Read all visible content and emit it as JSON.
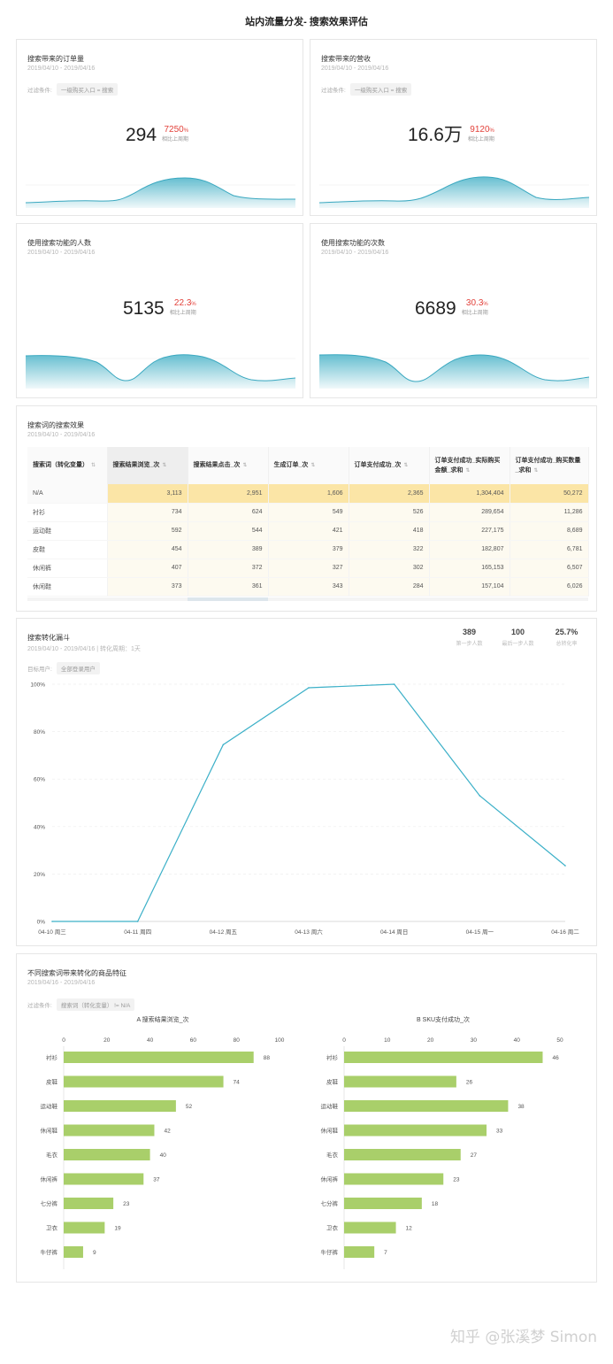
{
  "page_title": "站内流量分发- 搜索效果评估",
  "kpis": [
    {
      "title": "搜索带来的订单量",
      "date": "2019/04/10 - 2019/04/16",
      "filter_label": "过滤条件:",
      "filter_tag": "一级购买入口 = 搜索",
      "value": "294",
      "pct": "7250",
      "pct_unit": "%",
      "compare": "相比上周期"
    },
    {
      "title": "搜索带来的营收",
      "date": "2019/04/10 - 2019/04/16",
      "filter_label": "过滤条件:",
      "filter_tag": "一级购买入口 = 搜索",
      "value": "16.6万",
      "pct": "9120",
      "pct_unit": "%",
      "compare": "相比上周期"
    },
    {
      "title": "使用搜索功能的人数",
      "date": "2019/04/10 - 2019/04/16",
      "value": "5135",
      "pct": "22.3",
      "pct_unit": "%",
      "compare": "相比上周期"
    },
    {
      "title": "使用搜索功能的次数",
      "date": "2019/04/10 - 2019/04/16",
      "value": "6689",
      "pct": "30.3",
      "pct_unit": "%",
      "compare": "相比上周期"
    }
  ],
  "table": {
    "title": "搜索词的搜索效果",
    "date": "2019/04/10 - 2019/04/16",
    "columns": [
      "搜索词（转化变量）",
      "搜索结果浏览_次",
      "搜索结果点击_次",
      "生成订单_次",
      "订单支付成功_次",
      "订单支付成功_实际购买金额_求和",
      "订单支付成功_购买数量_求和"
    ],
    "rows": [
      [
        "N/A",
        "3,113",
        "2,951",
        "1,606",
        "2,365",
        "1,304,404",
        "50,272"
      ],
      [
        "衬衫",
        "734",
        "624",
        "549",
        "526",
        "289,654",
        "11,286"
      ],
      [
        "运动鞋",
        "592",
        "544",
        "421",
        "418",
        "227,175",
        "8,689"
      ],
      [
        "皮鞋",
        "454",
        "389",
        "379",
        "322",
        "182,807",
        "6,781"
      ],
      [
        "休闲裤",
        "407",
        "372",
        "327",
        "302",
        "165,153",
        "6,507"
      ],
      [
        "休闲鞋",
        "373",
        "361",
        "343",
        "284",
        "157,104",
        "6,026"
      ]
    ]
  },
  "funnel": {
    "title": "搜索转化漏斗",
    "date": "2019/04/10 - 2019/04/16 | 转化周期：1天",
    "target_label": "目标用户:",
    "target_tag": "全部登录用户",
    "stats": [
      {
        "value": "389",
        "label": "第一步人数"
      },
      {
        "value": "100",
        "label": "最后一步人数"
      },
      {
        "value": "25.7%",
        "label": "总转化率"
      }
    ]
  },
  "bars": {
    "title": "不同搜索词带来转化的商品特征",
    "date": "2019/04/16 - 2019/04/16",
    "filter_label": "过滤条件:",
    "filter_tag": "搜索词（转化变量） != N/A",
    "color": "#a9cf6a"
  },
  "chart_data": [
    {
      "type": "line",
      "title": "搜索转化漏斗",
      "x": [
        "04-10 周三",
        "04-11 周四",
        "04-12 周五",
        "04-13 周六",
        "04-14 周日",
        "04-15 周一",
        "04-16 周二"
      ],
      "values": [
        0,
        0,
        74.5,
        98.5,
        100,
        53,
        23.5
      ],
      "yticks": [
        "0%",
        "20%",
        "40%",
        "60%",
        "80%",
        "100%"
      ],
      "ylim": [
        0,
        100
      ],
      "grid": true
    },
    {
      "type": "bar",
      "title": "A 搜索结果浏览_次",
      "categories": [
        "衬衫",
        "皮鞋",
        "运动鞋",
        "休闲鞋",
        "毛衣",
        "休闲裤",
        "七分裤",
        "卫衣",
        "牛仔裤"
      ],
      "values": [
        88,
        74,
        52,
        42,
        40,
        37,
        23,
        19,
        9
      ],
      "xticks": [
        0,
        20,
        40,
        60,
        80,
        100
      ],
      "xlim": [
        0,
        100
      ]
    },
    {
      "type": "bar",
      "title": "B SKU支付成功_次",
      "categories": [
        "衬衫",
        "皮鞋",
        "运动鞋",
        "休闲鞋",
        "毛衣",
        "休闲裤",
        "七分裤",
        "卫衣",
        "牛仔裤"
      ],
      "values": [
        46,
        26,
        38,
        33,
        27,
        23,
        18,
        12,
        7
      ],
      "xticks": [
        0,
        10,
        20,
        30,
        40,
        50
      ],
      "xlim": [
        0,
        50
      ]
    }
  ],
  "watermark": "知乎 @张溪梦 Simon"
}
